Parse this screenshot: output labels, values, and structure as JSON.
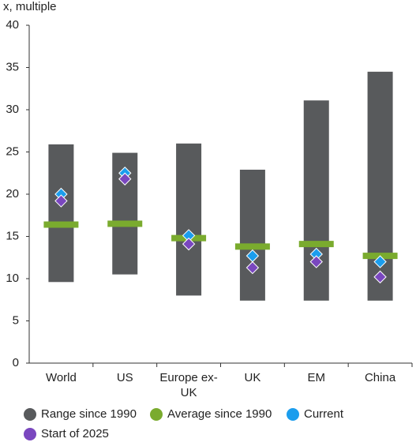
{
  "chart_data": {
    "type": "range",
    "y_label": "x, multiple",
    "categories": [
      "World",
      "US",
      "Europe ex-UK",
      "UK",
      "EM",
      "China"
    ],
    "ylim": [
      0,
      40
    ],
    "yticks": [
      0,
      5,
      10,
      15,
      20,
      25,
      30,
      35,
      40
    ],
    "grid": false,
    "series": [
      {
        "name": "Range since 1990",
        "color": "#585a5c",
        "low": [
          9.6,
          10.5,
          8.0,
          7.4,
          7.4,
          7.4
        ],
        "high": [
          25.9,
          24.9,
          26.0,
          22.9,
          31.1,
          34.5
        ]
      },
      {
        "name": "Average since 1990",
        "color": "#7aab2e",
        "marker": "bar",
        "values": [
          16.4,
          16.5,
          14.8,
          13.8,
          14.1,
          12.7
        ]
      },
      {
        "name": "Current",
        "color": "#1b9ded",
        "marker": "diamond",
        "values": [
          20.0,
          22.5,
          15.1,
          12.7,
          12.9,
          12.0
        ]
      },
      {
        "name": "Start of 2025",
        "color": "#7a47bf",
        "marker": "diamond",
        "values": [
          19.2,
          21.8,
          14.1,
          11.3,
          12.0,
          10.2
        ]
      }
    ]
  }
}
